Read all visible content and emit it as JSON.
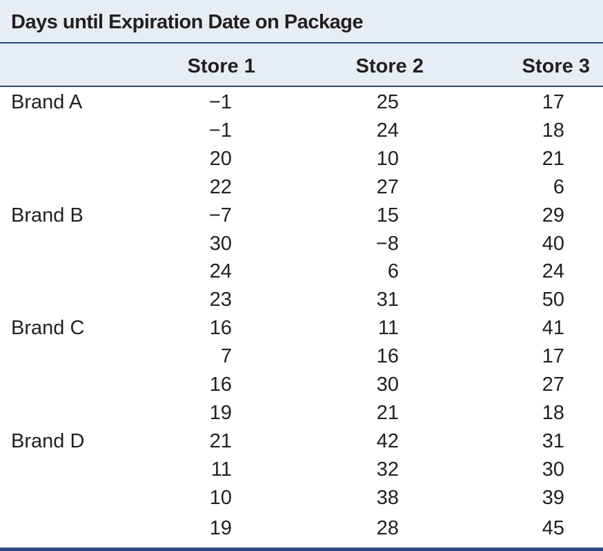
{
  "table": {
    "title": "Days until Expiration Date on Package",
    "columns": [
      "Store 1",
      "Store 2",
      "Store 3"
    ],
    "groups": [
      {
        "label": "Brand A",
        "rows": [
          [
            "−1",
            "25",
            "17"
          ],
          [
            "−1",
            "24",
            "18"
          ],
          [
            "20",
            "10",
            "21"
          ],
          [
            "22",
            "27",
            "6"
          ]
        ]
      },
      {
        "label": "Brand B",
        "rows": [
          [
            "−7",
            "15",
            "29"
          ],
          [
            "30",
            "−8",
            "40"
          ],
          [
            "24",
            "6",
            "24"
          ],
          [
            "23",
            "31",
            "50"
          ]
        ]
      },
      {
        "label": "Brand C",
        "rows": [
          [
            "16",
            "11",
            "41"
          ],
          [
            "7",
            "16",
            "17"
          ],
          [
            "16",
            "30",
            "27"
          ],
          [
            "19",
            "21",
            "18"
          ]
        ]
      },
      {
        "label": "Brand D",
        "rows": [
          [
            "21",
            "42",
            "31"
          ],
          [
            "11",
            "32",
            "30"
          ],
          [
            "10",
            "38",
            "39"
          ],
          [
            "19",
            "28",
            "45"
          ]
        ]
      }
    ]
  }
}
